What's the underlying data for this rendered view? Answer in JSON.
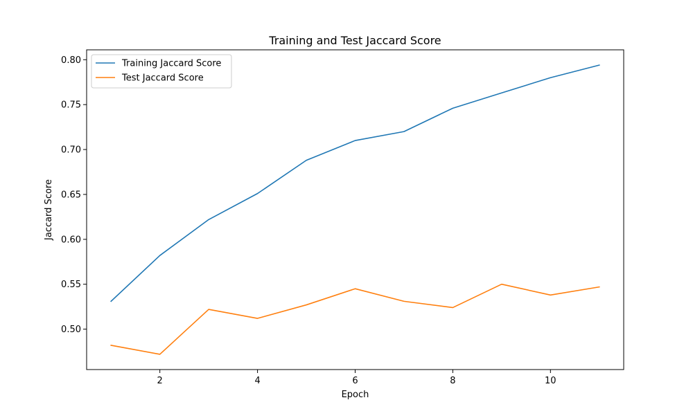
{
  "chart_data": {
    "type": "line",
    "title": "Training and Test Jaccard Score",
    "xlabel": "Epoch",
    "ylabel": "Jaccard Score",
    "x": [
      1,
      2,
      3,
      4,
      5,
      6,
      7,
      8,
      9,
      10,
      11
    ],
    "series": [
      {
        "name": "Training Jaccard Score",
        "color": "#1f77b4",
        "values": [
          0.531,
          0.582,
          0.622,
          0.651,
          0.688,
          0.71,
          0.72,
          0.746,
          0.763,
          0.78,
          0.794
        ]
      },
      {
        "name": "Test Jaccard Score",
        "color": "#ff7f0e",
        "values": [
          0.482,
          0.472,
          0.522,
          0.512,
          0.527,
          0.545,
          0.531,
          0.524,
          0.55,
          0.538,
          0.547
        ]
      }
    ],
    "xlim": [
      0.5,
      11.5
    ],
    "ylim": [
      0.455,
      0.811
    ],
    "xticks": [
      2,
      4,
      6,
      8,
      10
    ],
    "xtick_labels": [
      "2",
      "4",
      "6",
      "8",
      "10"
    ],
    "yticks": [
      0.5,
      0.55,
      0.6,
      0.65,
      0.7,
      0.75,
      0.8
    ],
    "ytick_labels": [
      "0.50",
      "0.55",
      "0.60",
      "0.65",
      "0.70",
      "0.75",
      "0.80"
    ],
    "grid": false,
    "legend_position": "upper left"
  }
}
